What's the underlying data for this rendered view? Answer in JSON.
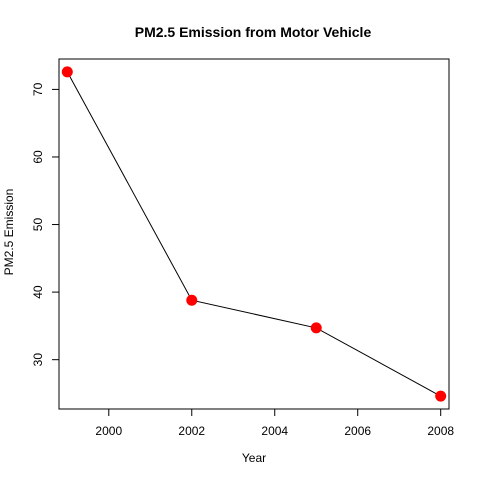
{
  "chart_data": {
    "type": "line",
    "title": "PM2.5 Emission from Motor Vehicle",
    "xlabel": "Year",
    "ylabel": "PM2.5 Emission",
    "x": [
      1999,
      2002,
      2005,
      2008
    ],
    "series": [
      {
        "values": [
          72.6,
          38.8,
          34.7,
          24.6
        ]
      }
    ],
    "xlim": [
      1998.8,
      2008.2
    ],
    "ylim": [
      22.7,
      74.5
    ],
    "xticks": [
      2000,
      2002,
      2004,
      2006,
      2008
    ],
    "yticks": [
      30,
      40,
      50,
      60,
      70
    ],
    "line_color": "#000000",
    "point_color": "#ff0000",
    "grid": false,
    "legend": "none"
  }
}
